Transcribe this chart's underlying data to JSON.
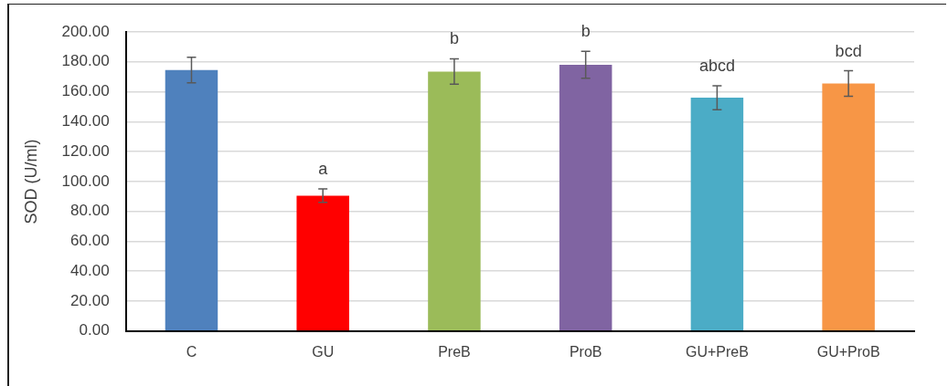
{
  "chart_data": {
    "type": "bar",
    "ylabel": "SOD (U/ml)",
    "categories": [
      "C",
      "GU",
      "PreB",
      "ProB",
      "GU+PreB",
      "GU+ProB"
    ],
    "values": [
      174.5,
      90.5,
      173.5,
      178,
      156,
      165.5
    ],
    "colors": [
      "#4f81bd",
      "#ff0000",
      "#9bbb59",
      "#8064a2",
      "#4bacc6",
      "#f79646"
    ],
    "errors": [
      8.5,
      4.5,
      8.5,
      9,
      8,
      8.5
    ],
    "ylim": [
      0,
      200
    ],
    "yticks": [
      {
        "value": 0,
        "label": "0.00"
      },
      {
        "value": 20,
        "label": "20.00"
      },
      {
        "value": 40,
        "label": "40.00"
      },
      {
        "value": 60,
        "label": "60.00"
      },
      {
        "value": 80,
        "label": "80.00"
      },
      {
        "value": 100,
        "label": "100.00"
      },
      {
        "value": 120,
        "label": "120.00"
      },
      {
        "value": 140,
        "label": "140.00"
      },
      {
        "value": 160,
        "label": "160.00"
      },
      {
        "value": 180,
        "label": "180.00"
      },
      {
        "value": 200,
        "label": "200.00"
      }
    ],
    "grid": "y",
    "value_labels": [
      null,
      "a",
      "b",
      "b",
      "abcd",
      "bcd"
    ]
  }
}
